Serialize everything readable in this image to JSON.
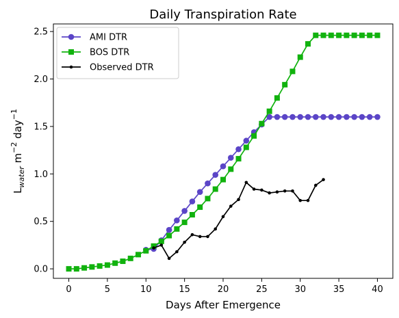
{
  "chart_data": {
    "type": "line",
    "title": "Daily Transpiration Rate",
    "xlabel": "Days After Emergence",
    "ylabel_parts": {
      "base": "L",
      "sub": "water",
      "mid": " m",
      "sup1": "−2",
      "end": " day",
      "sup2": "−1"
    },
    "xlim": [
      -2,
      42
    ],
    "ylim": [
      -0.1,
      2.58
    ],
    "xticks": [
      0,
      5,
      10,
      15,
      20,
      25,
      30,
      35,
      40
    ],
    "yticks": [
      0.0,
      0.5,
      1.0,
      1.5,
      2.0,
      2.5
    ],
    "ytick_labels": [
      "0.0",
      "0.5",
      "1.0",
      "1.5",
      "2.0",
      "2.5"
    ],
    "legend_position": "upper-left",
    "grid": false,
    "series": [
      {
        "name": "AMI DTR",
        "color": "#5b45c7",
        "marker": "circle",
        "x": [
          10,
          11,
          12,
          13,
          14,
          15,
          16,
          17,
          18,
          19,
          20,
          21,
          22,
          23,
          24,
          25,
          26,
          27,
          28,
          29,
          30,
          31,
          32,
          33,
          34,
          35,
          36,
          37,
          38,
          39,
          40
        ],
        "y": [
          0.2,
          0.21,
          0.3,
          0.41,
          0.51,
          0.61,
          0.71,
          0.81,
          0.9,
          0.99,
          1.08,
          1.17,
          1.26,
          1.35,
          1.44,
          1.52,
          1.6,
          1.6,
          1.6,
          1.6,
          1.6,
          1.6,
          1.6,
          1.6,
          1.6,
          1.6,
          1.6,
          1.6,
          1.6,
          1.6,
          1.6
        ]
      },
      {
        "name": "BOS DTR",
        "color": "#11b20e",
        "marker": "square",
        "x": [
          0,
          1,
          2,
          3,
          4,
          5,
          6,
          7,
          8,
          9,
          10,
          11,
          12,
          13,
          14,
          15,
          16,
          17,
          18,
          19,
          20,
          21,
          22,
          23,
          24,
          25,
          26,
          27,
          28,
          29,
          30,
          31,
          32,
          33,
          34,
          35,
          36,
          37,
          38,
          39,
          40
        ],
        "y": [
          0.0,
          0.0,
          0.01,
          0.02,
          0.03,
          0.04,
          0.06,
          0.08,
          0.11,
          0.15,
          0.19,
          0.24,
          0.29,
          0.35,
          0.42,
          0.49,
          0.57,
          0.65,
          0.74,
          0.84,
          0.94,
          1.05,
          1.16,
          1.28,
          1.4,
          1.53,
          1.66,
          1.8,
          1.94,
          2.08,
          2.23,
          2.37,
          2.46,
          2.46,
          2.46,
          2.46,
          2.46,
          2.46,
          2.46,
          2.46,
          2.46
        ]
      },
      {
        "name": "Observed DTR",
        "color": "#000000",
        "marker": "dot",
        "x": [
          11,
          12,
          13,
          14,
          15,
          16,
          17,
          18,
          19,
          20,
          21,
          22,
          23,
          24,
          25,
          26,
          27,
          28,
          29,
          30,
          31,
          32,
          33
        ],
        "y": [
          0.22,
          0.25,
          0.11,
          0.18,
          0.28,
          0.36,
          0.34,
          0.34,
          0.42,
          0.55,
          0.66,
          0.73,
          0.91,
          0.84,
          0.83,
          0.8,
          0.81,
          0.82,
          0.82,
          0.72,
          0.72,
          0.88,
          0.94
        ]
      }
    ]
  }
}
